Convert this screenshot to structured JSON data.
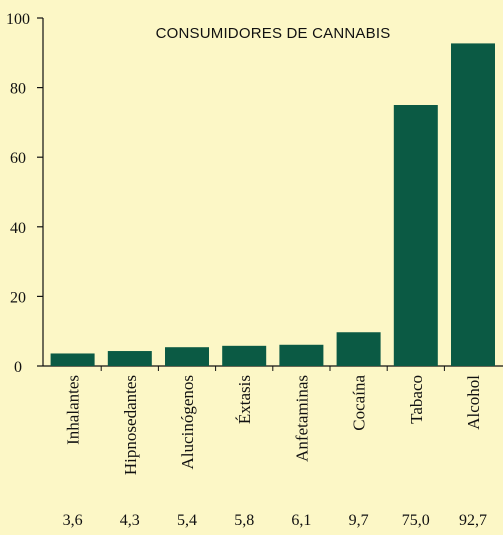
{
  "chart_data": {
    "type": "bar",
    "title": "CONSUMIDORES DE CANNABIS",
    "categories": [
      "Inhalantes",
      "Hipnosedantes",
      "Alucinógenos",
      "Éxtasis",
      "Anfetaminas",
      "Cocaína",
      "Tabaco",
      "Alcohol"
    ],
    "values": [
      3.6,
      4.3,
      5.4,
      5.8,
      6.1,
      9.7,
      75.0,
      92.7
    ],
    "value_labels": [
      "3,6",
      "4,3",
      "5,4",
      "5,8",
      "6,1",
      "9,7",
      "75,0",
      "92,7"
    ],
    "ylim": [
      0,
      100
    ],
    "yticks": [
      0,
      20,
      40,
      60,
      80,
      100
    ],
    "xlabel": "",
    "ylabel": "",
    "grid": false,
    "bar_color": "#0b5a44",
    "background_color": "#fcf7c6"
  }
}
